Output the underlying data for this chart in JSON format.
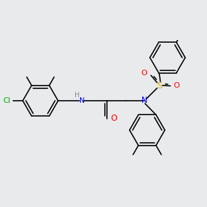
{
  "bg_color": "#e8eaec",
  "bond_color": "#000000",
  "lw": 1.2,
  "atom_colors": {
    "Cl": "#00aa00",
    "N": "#0000ee",
    "O": "#ff0000",
    "S": "#ddaa00",
    "H": "#888888",
    "C": "#000000"
  },
  "fs": 7.5,
  "r": 0.32
}
